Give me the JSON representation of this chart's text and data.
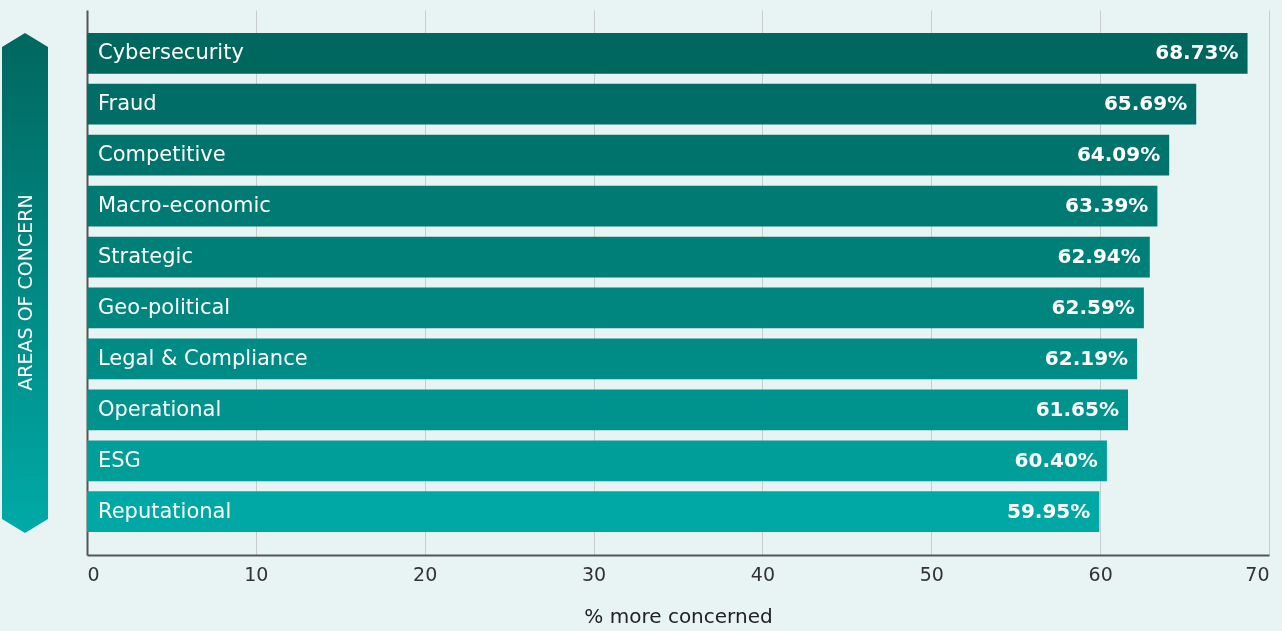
{
  "chart_data": {
    "type": "bar",
    "orientation": "horizontal",
    "categories": [
      "Cybersecurity",
      "Fraud",
      "Competitive",
      "Macro-economic",
      "Strategic",
      "Geo-political",
      "Legal & Compliance",
      "Operational",
      "ESG",
      "Reputational"
    ],
    "values": [
      68.73,
      65.69,
      64.09,
      63.39,
      62.94,
      62.59,
      62.19,
      61.65,
      60.4,
      59.95
    ],
    "value_labels": [
      "68.73%",
      "65.69%",
      "64.09%",
      "63.39%",
      "62.94%",
      "62.59%",
      "62.19%",
      "61.65%",
      "60.40%",
      "59.95%"
    ],
    "colors": [
      "#00675f",
      "#006e66",
      "#00746c",
      "#007a73",
      "#007f79",
      "#00857f",
      "#008c86",
      "#00938d",
      "#009e99",
      "#00a8a5"
    ],
    "xlim": [
      0,
      70
    ],
    "xticks": [
      0,
      10,
      20,
      30,
      40,
      50,
      60,
      70
    ],
    "xlabel": "% more concerned",
    "ylabel": "AREAS OF CONCERN",
    "grid": "x"
  }
}
